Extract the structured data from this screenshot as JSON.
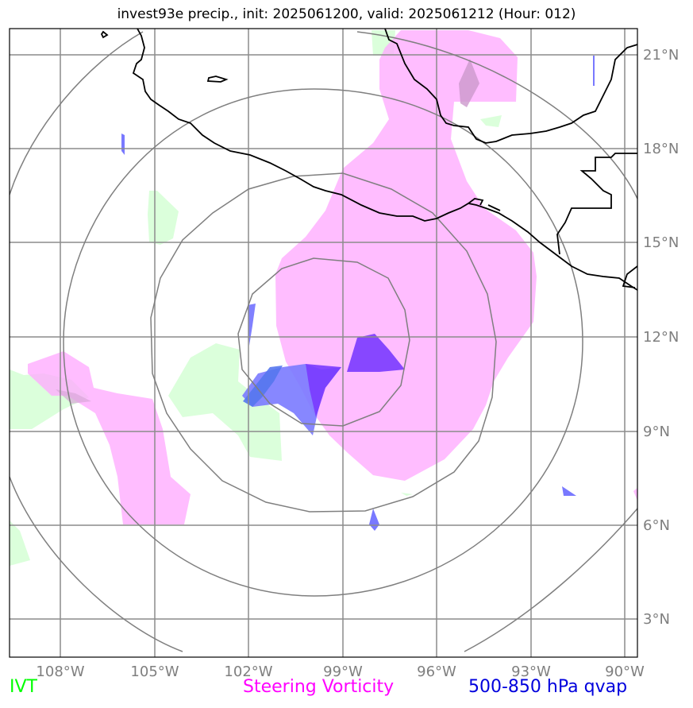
{
  "title": "invest93e precip., init: 2025061200, valid: 2025061212 (Hour: 012)",
  "lon_labels": [
    "108°W",
    "105°W",
    "102°W",
    "99°W",
    "96°W",
    "93°W",
    "90°W"
  ],
  "lat_labels": [
    "21°N",
    "18°N",
    "15°N",
    "12°N",
    "9°N",
    "6°N",
    "3°N"
  ],
  "legend": {
    "ivt": "IVT",
    "vorticity": "Steering Vorticity",
    "qvap": "500-850 hPa qvap"
  },
  "colors": {
    "ivt": "#00ff00",
    "vorticity": "#ff00ff",
    "qvap": "#0000dd",
    "grid": "#7f7f7f",
    "coast": "#000000"
  }
}
